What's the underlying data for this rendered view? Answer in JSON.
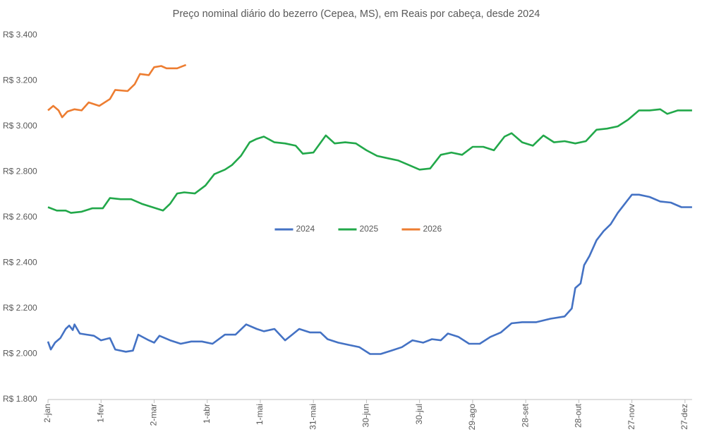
{
  "chart_data": {
    "type": "line",
    "title": "Preço nominal diário do bezerro (Cepea, MS), em Reais por cabeça, desde 2024",
    "xlim": [
      2,
      366
    ],
    "xticks": [
      {
        "value": 2,
        "label": "2-jan"
      },
      {
        "value": 32,
        "label": "1-fev"
      },
      {
        "value": 62,
        "label": "2-mar"
      },
      {
        "value": 92,
        "label": "1-abr"
      },
      {
        "value": 122,
        "label": "1-mai"
      },
      {
        "value": 152,
        "label": "31-mai"
      },
      {
        "value": 182,
        "label": "30-jun"
      },
      {
        "value": 212,
        "label": "30-jul"
      },
      {
        "value": 242,
        "label": "29-ago"
      },
      {
        "value": 272,
        "label": "28-set"
      },
      {
        "value": 302,
        "label": "28-out"
      },
      {
        "value": 332,
        "label": "27-nov"
      },
      {
        "value": 362,
        "label": "27-dez"
      }
    ],
    "ylim": [
      1800,
      3400
    ],
    "yticks": [
      {
        "value": 1800,
        "label": "R$ 1.800"
      },
      {
        "value": 2000,
        "label": "R$ 2.000"
      },
      {
        "value": 2200,
        "label": "R$ 2.200"
      },
      {
        "value": 2400,
        "label": "R$ 2.400"
      },
      {
        "value": 2600,
        "label": "R$ 2.600"
      },
      {
        "value": 2800,
        "label": "R$ 2.800"
      },
      {
        "value": 3000,
        "label": "R$ 3.000"
      },
      {
        "value": 3200,
        "label": "R$ 3.200"
      },
      {
        "value": 3400,
        "label": "R$ 3.400"
      }
    ],
    "grid": false,
    "legend": "center",
    "series": [
      {
        "name": "2024",
        "color": "#4472c4",
        "x": [
          2,
          3.6,
          6,
          9,
          12,
          14,
          16,
          17,
          20,
          24,
          28,
          32,
          37,
          40,
          46,
          50,
          53,
          59,
          62,
          65,
          71,
          77,
          83,
          89,
          95,
          102,
          108,
          114,
          120,
          124,
          130,
          136,
          140,
          144,
          150,
          156,
          160,
          166,
          172,
          178,
          184,
          190,
          196,
          202,
          208,
          214,
          219,
          224,
          228,
          234,
          240,
          246,
          252,
          258,
          264,
          270,
          278,
          286,
          294,
          298,
          300,
          303,
          305,
          308,
          312,
          316,
          320,
          324,
          328,
          332,
          336,
          342,
          348,
          354,
          360,
          366
        ],
        "values": [
          2055,
          2020,
          2050,
          2070,
          2110,
          2125,
          2105,
          2130,
          2090,
          2085,
          2080,
          2060,
          2070,
          2020,
          2010,
          2015,
          2085,
          2060,
          2050,
          2080,
          2060,
          2045,
          2055,
          2055,
          2045,
          2085,
          2085,
          2130,
          2110,
          2100,
          2110,
          2060,
          2085,
          2110,
          2095,
          2095,
          2065,
          2050,
          2040,
          2030,
          2000,
          2000,
          2015,
          2030,
          2060,
          2050,
          2065,
          2060,
          2090,
          2075,
          2045,
          2045,
          2075,
          2095,
          2135,
          2140,
          2140,
          2155,
          2165,
          2200,
          2290,
          2310,
          2390,
          2430,
          2500,
          2540,
          2570,
          2620,
          2660,
          2700,
          2700,
          2690,
          2670,
          2665,
          2645,
          2645
        ]
      },
      {
        "name": "2025",
        "color": "#22a84a",
        "x": [
          2,
          7,
          12,
          15,
          21,
          27,
          33,
          37,
          43,
          49,
          55,
          61,
          67,
          71,
          75,
          79,
          85,
          91,
          96,
          102,
          106,
          111,
          116,
          120,
          124,
          130,
          136,
          142,
          146,
          152,
          159,
          164,
          170,
          176,
          182,
          188,
          194,
          200,
          206,
          212,
          218,
          224,
          230,
          236,
          242,
          248,
          254,
          260,
          264,
          270,
          276,
          282,
          288,
          294,
          300,
          306,
          312,
          318,
          324,
          330,
          336,
          342,
          348,
          352,
          358,
          366
        ],
        "values": [
          2645,
          2630,
          2630,
          2620,
          2625,
          2640,
          2640,
          2685,
          2680,
          2680,
          2660,
          2645,
          2630,
          2660,
          2705,
          2710,
          2705,
          2740,
          2790,
          2810,
          2830,
          2870,
          2930,
          2945,
          2955,
          2930,
          2925,
          2915,
          2880,
          2885,
          2960,
          2925,
          2930,
          2925,
          2895,
          2870,
          2860,
          2850,
          2830,
          2810,
          2815,
          2875,
          2885,
          2875,
          2910,
          2910,
          2895,
          2955,
          2970,
          2930,
          2915,
          2960,
          2930,
          2935,
          2925,
          2935,
          2985,
          2990,
          3000,
          3030,
          3070,
          3070,
          3075,
          3055,
          3070,
          3070
        ]
      },
      {
        "name": "2026",
        "color": "#ed7d31",
        "x": [
          2,
          5,
          8,
          10,
          13,
          17,
          21,
          25,
          31,
          37,
          40,
          47,
          51,
          54,
          59,
          62,
          66,
          69,
          75,
          80
        ],
        "values": [
          3070,
          3090,
          3070,
          3040,
          3065,
          3075,
          3070,
          3105,
          3090,
          3120,
          3160,
          3155,
          3185,
          3230,
          3225,
          3260,
          3265,
          3255,
          3255,
          3270
        ]
      }
    ]
  }
}
